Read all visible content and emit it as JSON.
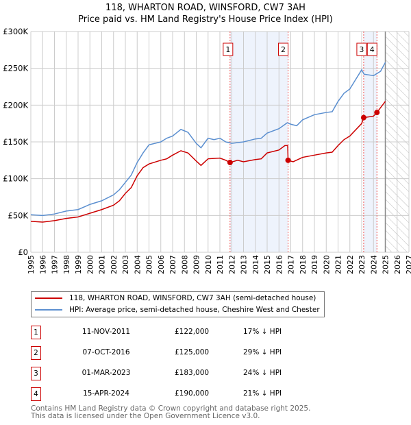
{
  "chart_data": {
    "type": "line",
    "title": "118, WHARTON ROAD, WINSFORD, CW7 3AH",
    "subtitle": "Price paid vs. HM Land Registry's House Price Index (HPI)",
    "xlim": [
      1995,
      2027
    ],
    "ylim": [
      0,
      300000
    ],
    "x_ticks": [
      "1995",
      "1996",
      "1997",
      "1998",
      "1999",
      "2000",
      "2001",
      "2002",
      "2003",
      "2004",
      "2005",
      "2006",
      "2007",
      "2008",
      "2009",
      "2010",
      "2011",
      "2012",
      "2013",
      "2014",
      "2015",
      "2016",
      "2017",
      "2018",
      "2019",
      "2020",
      "2021",
      "2022",
      "2023",
      "2024",
      "2025",
      "2026",
      "2027"
    ],
    "y_ticks": [
      {
        "v": 0,
        "label": "£0"
      },
      {
        "v": 50000,
        "label": "£50K"
      },
      {
        "v": 100000,
        "label": "£100K"
      },
      {
        "v": 150000,
        "label": "£150K"
      },
      {
        "v": 200000,
        "label": "£200K"
      },
      {
        "v": 250000,
        "label": "£250K"
      },
      {
        "v": 300000,
        "label": "£300K"
      }
    ],
    "grid": true,
    "forecast_from": 2025.0,
    "shaded_ranges": [
      [
        2011.86,
        2016.77
      ],
      [
        2023.17,
        2024.29
      ]
    ],
    "series": [
      {
        "name": "118, WHARTON ROAD, WINSFORD, CW7 3AH (semi-detached house)",
        "color": "#cc0000",
        "points": [
          [
            1995,
            42
          ],
          [
            1996,
            41
          ],
          [
            1997,
            43
          ],
          [
            1998,
            46
          ],
          [
            1999,
            48
          ],
          [
            2000,
            53
          ],
          [
            2001,
            58
          ],
          [
            2002,
            64
          ],
          [
            2002.5,
            70
          ],
          [
            2003,
            80
          ],
          [
            2003.5,
            88
          ],
          [
            2004,
            104
          ],
          [
            2004.5,
            115
          ],
          [
            2005,
            120
          ],
          [
            2006,
            125
          ],
          [
            2006.5,
            127
          ],
          [
            2007,
            132
          ],
          [
            2007.7,
            138
          ],
          [
            2008.3,
            135
          ],
          [
            2009,
            124
          ],
          [
            2009.4,
            118
          ],
          [
            2010,
            127
          ],
          [
            2011,
            128
          ],
          [
            2011.5,
            125
          ],
          [
            2011.86,
            122
          ],
          [
            2012.5,
            125
          ],
          [
            2013,
            123
          ],
          [
            2014,
            126
          ],
          [
            2014.5,
            127
          ],
          [
            2015,
            135
          ],
          [
            2016,
            139
          ],
          [
            2016.5,
            145
          ],
          [
            2016.74,
            145
          ],
          [
            2016.77,
            125
          ],
          [
            2017.2,
            123
          ],
          [
            2018,
            129
          ],
          [
            2019,
            132
          ],
          [
            2020,
            135
          ],
          [
            2020.5,
            136
          ],
          [
            2021,
            145
          ],
          [
            2021.5,
            153
          ],
          [
            2022,
            158
          ],
          [
            2023,
            175
          ],
          [
            2023.17,
            183
          ],
          [
            2024,
            185
          ],
          [
            2024.29,
            190
          ],
          [
            2025,
            205
          ]
        ]
      },
      {
        "name": "HPI: Average price, semi-detached house, Cheshire West and Chester",
        "color": "#5b8fd0",
        "points": [
          [
            1995,
            51
          ],
          [
            1996,
            50
          ],
          [
            1997,
            52
          ],
          [
            1998,
            56
          ],
          [
            1999,
            58
          ],
          [
            2000,
            65
          ],
          [
            2001,
            70
          ],
          [
            2002,
            78
          ],
          [
            2002.5,
            85
          ],
          [
            2003,
            95
          ],
          [
            2003.5,
            105
          ],
          [
            2004,
            122
          ],
          [
            2004.5,
            135
          ],
          [
            2005,
            146
          ],
          [
            2006,
            150
          ],
          [
            2006.5,
            155
          ],
          [
            2007,
            158
          ],
          [
            2007.7,
            167
          ],
          [
            2008.3,
            163
          ],
          [
            2009,
            148
          ],
          [
            2009.4,
            142
          ],
          [
            2010,
            155
          ],
          [
            2010.5,
            153
          ],
          [
            2011,
            155
          ],
          [
            2011.5,
            150
          ],
          [
            2012,
            148
          ],
          [
            2013,
            150
          ],
          [
            2014,
            154
          ],
          [
            2014.5,
            155
          ],
          [
            2015,
            162
          ],
          [
            2016,
            168
          ],
          [
            2016.7,
            176
          ],
          [
            2017,
            174
          ],
          [
            2017.5,
            172
          ],
          [
            2018,
            180
          ],
          [
            2019,
            187
          ],
          [
            2020,
            190
          ],
          [
            2020.5,
            191
          ],
          [
            2021,
            205
          ],
          [
            2021.5,
            216
          ],
          [
            2022,
            222
          ],
          [
            2022.5,
            235
          ],
          [
            2023,
            248
          ],
          [
            2023.2,
            242
          ],
          [
            2024,
            240
          ],
          [
            2024.3,
            243
          ],
          [
            2024.6,
            246
          ],
          [
            2025,
            258
          ]
        ]
      }
    ],
    "sales": [
      {
        "n": "1",
        "x": 2011.86,
        "date": "11-NOV-2011",
        "price": "£122,000",
        "value": 122,
        "hpi": "17% ↓ HPI"
      },
      {
        "n": "2",
        "x": 2016.77,
        "date": "07-OCT-2016",
        "price": "£125,000",
        "value": 125,
        "hpi": "29% ↓ HPI"
      },
      {
        "n": "3",
        "x": 2023.17,
        "date": "01-MAR-2023",
        "price": "£183,000",
        "value": 183,
        "hpi": "24% ↓ HPI"
      },
      {
        "n": "4",
        "x": 2024.29,
        "date": "15-APR-2024",
        "price": "£190,000",
        "value": 190,
        "hpi": "21% ↓ HPI"
      }
    ]
  },
  "footer": {
    "line1": "Contains HM Land Registry data © Crown copyright and database right 2025.",
    "line2": "This data is licensed under the Open Government Licence v3.0."
  }
}
